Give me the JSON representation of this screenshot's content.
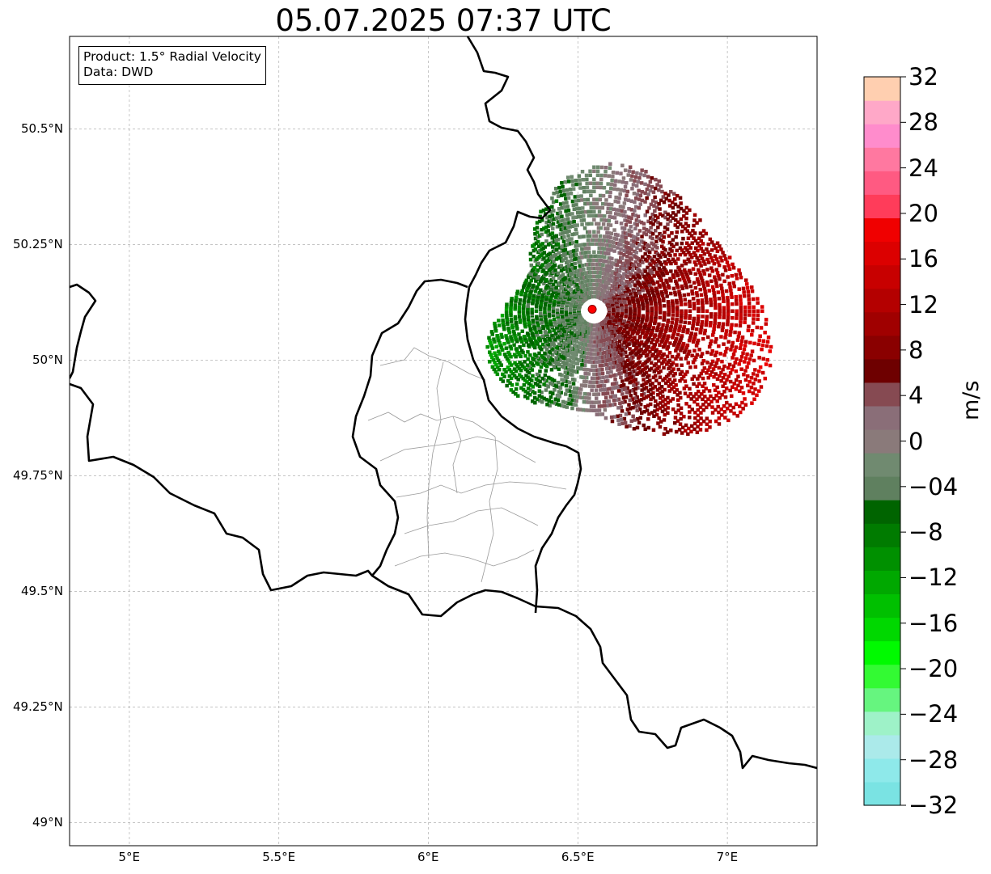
{
  "title": "05.07.2025 07:37 UTC",
  "info": {
    "product": "Product: 1.5° Radial Velocity",
    "data": "Data: DWD"
  },
  "map": {
    "lon_range": [
      4.8,
      7.3
    ],
    "lat_range": [
      48.95,
      50.7
    ],
    "lon_ticks": [
      {
        "value": 5.0,
        "label": "5°E"
      },
      {
        "value": 5.5,
        "label": "5.5°E"
      },
      {
        "value": 6.0,
        "label": "6°E"
      },
      {
        "value": 6.5,
        "label": "6.5°E"
      },
      {
        "value": 7.0,
        "label": "7°E"
      }
    ],
    "lat_ticks": [
      {
        "value": 50.5,
        "label": "50.5°N"
      },
      {
        "value": 50.25,
        "label": "50.25°N"
      },
      {
        "value": 50.0,
        "label": "50°N"
      },
      {
        "value": 49.75,
        "label": "49.75°N"
      },
      {
        "value": 49.5,
        "label": "49.5°N"
      },
      {
        "value": 49.25,
        "label": "49.25°N"
      },
      {
        "value": 49.0,
        "label": "49°N"
      }
    ],
    "radar_site": {
      "lon": 6.548,
      "lat": 50.11,
      "color": "#ff0000"
    },
    "border_color": "#000000",
    "district_color": "#9a9a9a",
    "grid_color": "#b0b0b0"
  },
  "colorbar": {
    "unit": "m/s",
    "min": -32,
    "max": 32,
    "tick_values": [
      32,
      28,
      24,
      20,
      16,
      12,
      8,
      4,
      0,
      -4,
      -8,
      -12,
      -16,
      -20,
      -24,
      -28,
      -32
    ],
    "tick_labels": [
      "32",
      "28",
      "24",
      "20",
      "16",
      "12",
      "8",
      "4",
      "0",
      "−04",
      "−8",
      "−12",
      "−16",
      "−20",
      "−24",
      "−28",
      "−32"
    ],
    "colors": [
      "#7ae3e3",
      "#8ee9ea",
      "#abeaea",
      "#9ef2c8",
      "#66f57f",
      "#33fa33",
      "#00fa00",
      "#00d800",
      "#00c000",
      "#00a800",
      "#009000",
      "#007b00",
      "#006400",
      "#5f805f",
      "#708a70",
      "#8a7a7a",
      "#8a6e78",
      "#864a52",
      "#6e0000",
      "#8a0000",
      "#a00000",
      "#b40000",
      "#c80000",
      "#dc0000",
      "#f00000",
      "#ff3c5a",
      "#ff5a82",
      "#ff78a0",
      "#ff8ccc",
      "#ffa8c8",
      "#ffcfb0"
    ]
  }
}
